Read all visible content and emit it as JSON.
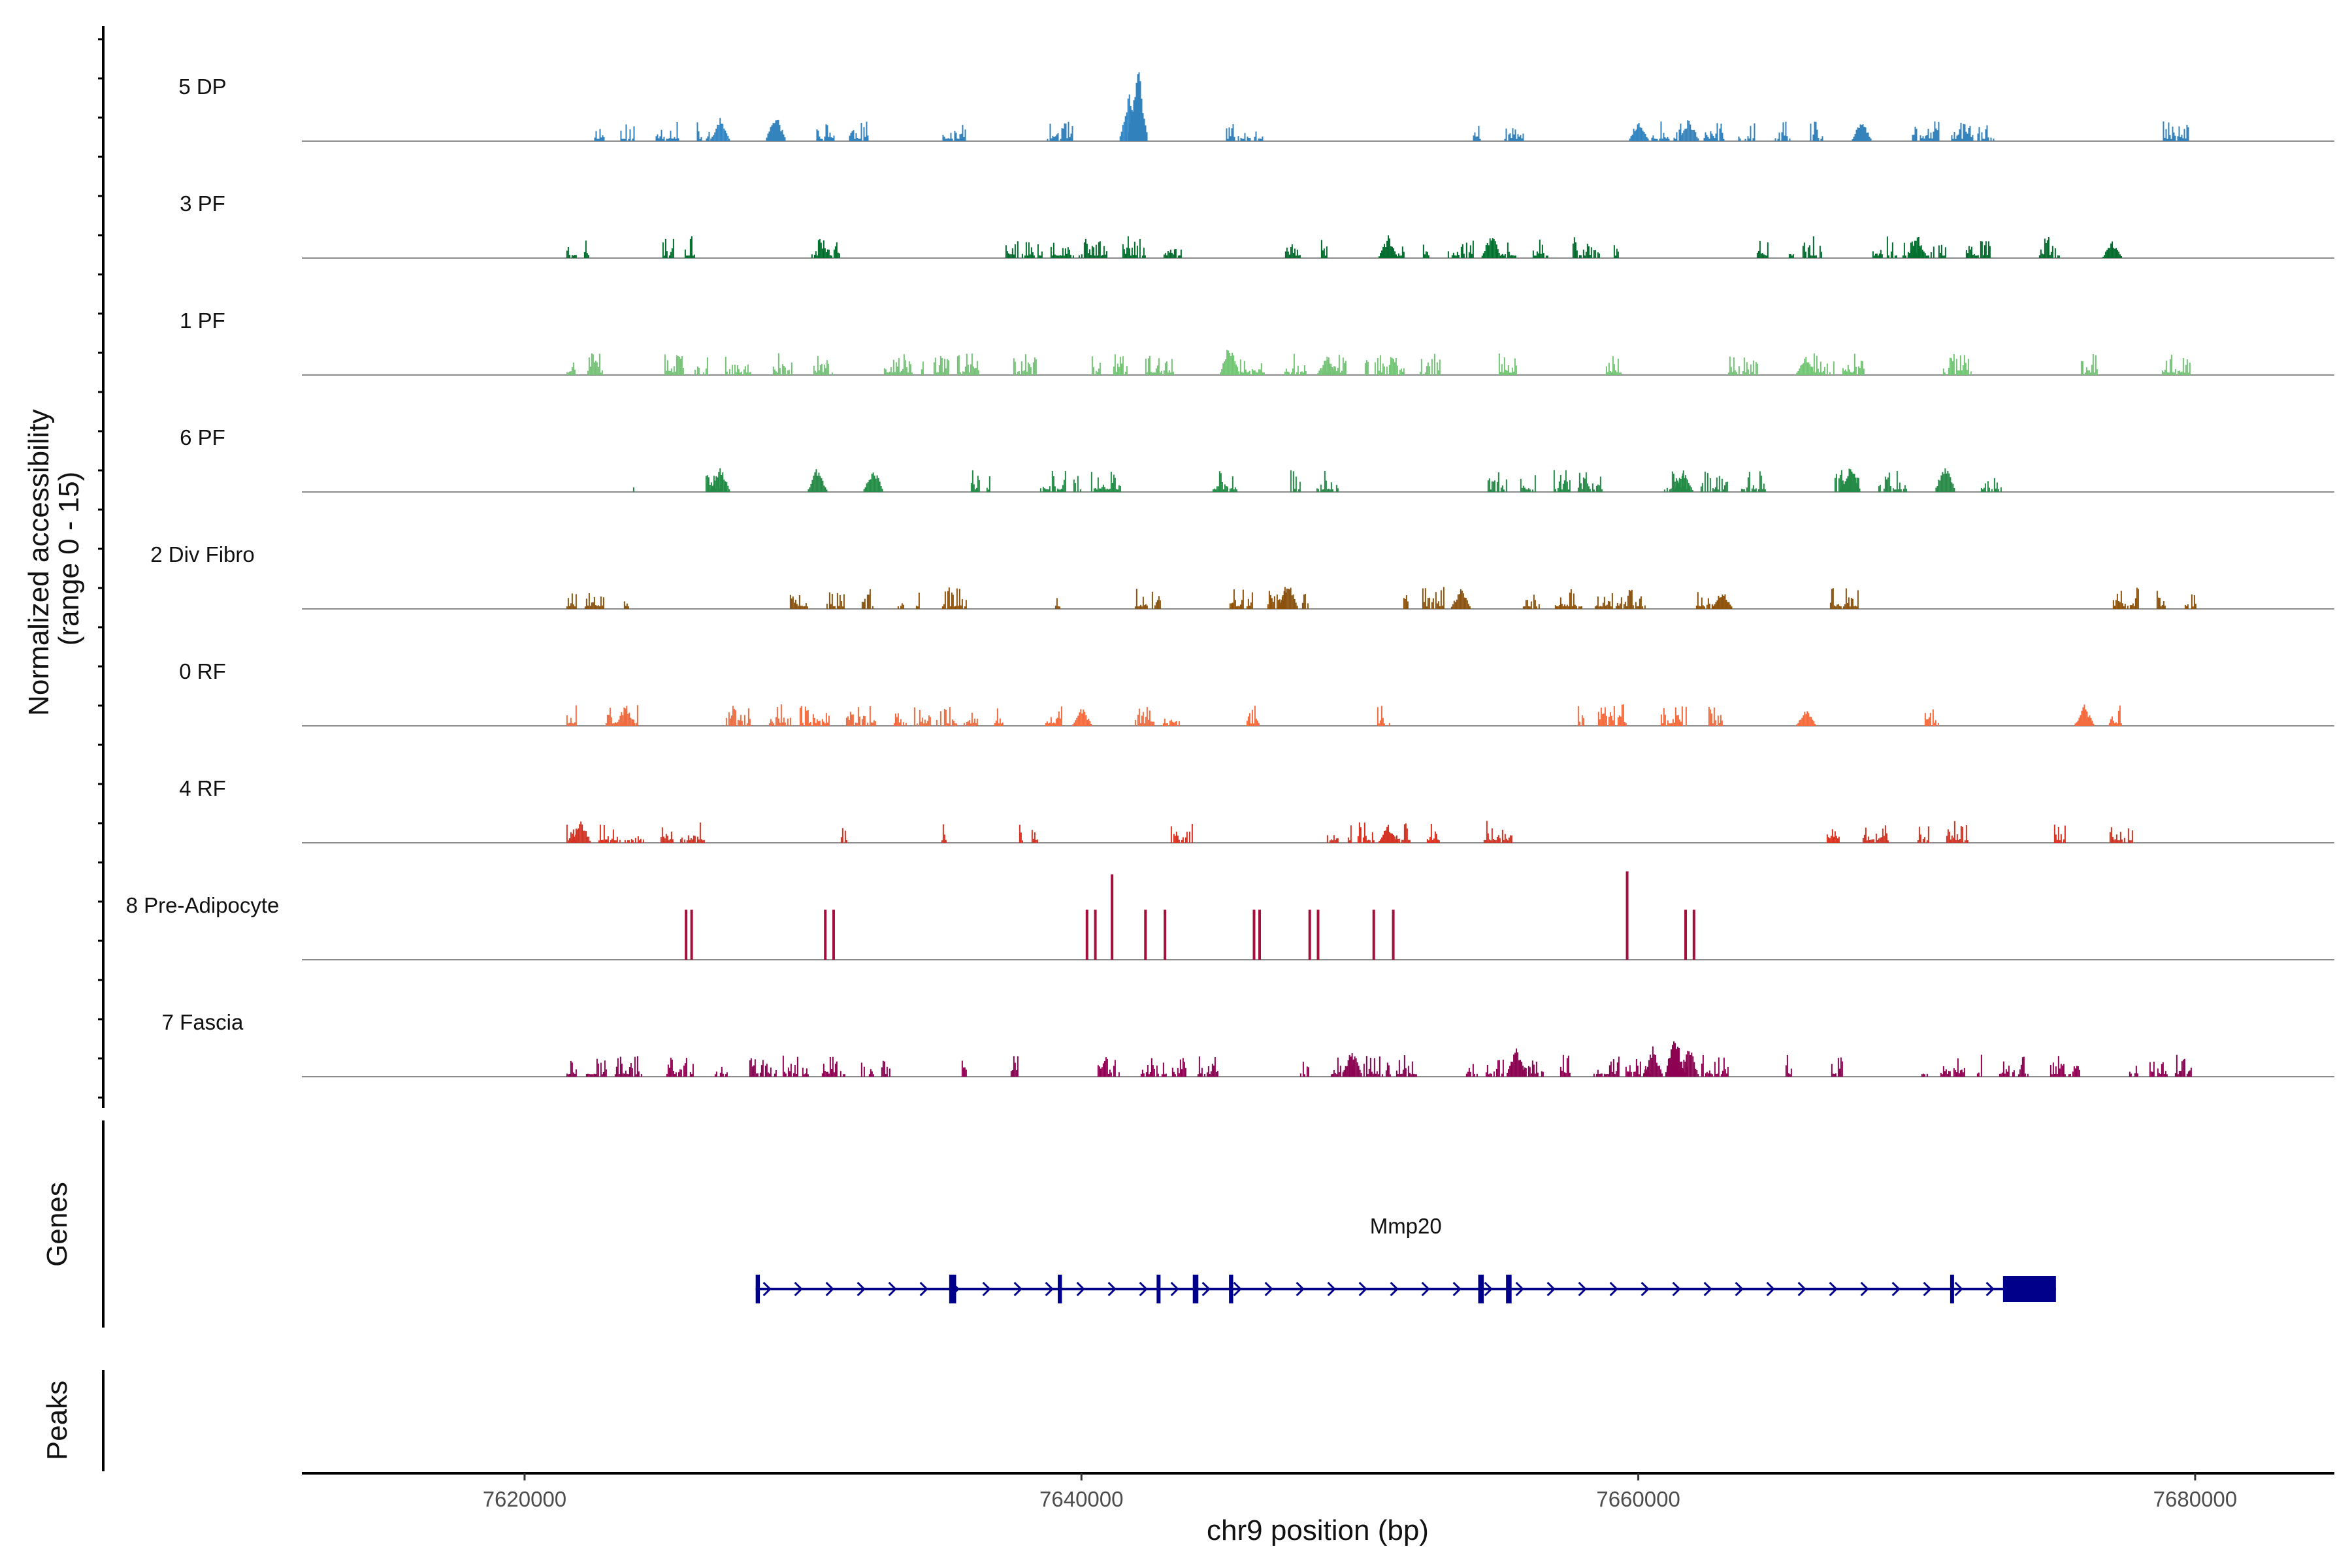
{
  "chart_data": {
    "type": "area",
    "title": "",
    "region": {
      "chrom": "chr9",
      "start": 7612000,
      "end": 7685000
    },
    "xlabel": "chr9 position (bp)",
    "ylabel_line1": "Normalized accessibility",
    "ylabel_line2": "(range 0 - 15)",
    "ylim": [
      0,
      15
    ],
    "x_ticks": [
      {
        "value": 7620000,
        "label": "7620000"
      },
      {
        "value": 7640000,
        "label": "7640000"
      },
      {
        "value": 7660000,
        "label": "7660000"
      },
      {
        "value": 7680000,
        "label": "7680000"
      }
    ],
    "tracks": [
      {
        "name": "5 DP",
        "color": "#3182bd",
        "density": 0.45,
        "scale": 0.9,
        "seed": 11,
        "span": [
          7622500,
          7680000
        ],
        "peaks": [
          {
            "pos": 7642000,
            "height": 13.8
          },
          {
            "pos": 7641700,
            "height": 8.5
          },
          {
            "pos": 7629000,
            "height": 5.2
          },
          {
            "pos": 7627000,
            "height": 4.0
          },
          {
            "pos": 7660000,
            "height": 4.2
          },
          {
            "pos": 7661800,
            "height": 4.0
          },
          {
            "pos": 7668000,
            "height": 3.8
          }
        ]
      },
      {
        "name": "3 PF",
        "color": "#006d2c",
        "density": 0.55,
        "scale": 1.0,
        "seed": 23,
        "span": [
          7621500,
          7678500
        ],
        "peaks": [
          {
            "pos": 7654700,
            "height": 4.6
          },
          {
            "pos": 7651000,
            "height": 3.8
          },
          {
            "pos": 7670000,
            "height": 3.5
          },
          {
            "pos": 7677000,
            "height": 3.0
          }
        ]
      },
      {
        "name": "1 PF",
        "color": "#74c476",
        "density": 0.7,
        "scale": 1.0,
        "seed": 37,
        "span": [
          7621500,
          7680000
        ],
        "peaks": [
          {
            "pos": 7645300,
            "height": 5.6
          },
          {
            "pos": 7648800,
            "height": 3.8
          },
          {
            "pos": 7666000,
            "height": 3.8
          }
        ]
      },
      {
        "name": "6 PF",
        "color": "#238b45",
        "density": 0.45,
        "scale": 1.0,
        "seed": 41,
        "span": [
          7621500,
          7680000
        ],
        "peaks": [
          {
            "pos": 7627000,
            "height": 4.6
          },
          {
            "pos": 7630500,
            "height": 4.4
          },
          {
            "pos": 7632500,
            "height": 4.6
          },
          {
            "pos": 7667600,
            "height": 5.6
          },
          {
            "pos": 7671000,
            "height": 5.6
          },
          {
            "pos": 7661600,
            "height": 3.8
          }
        ]
      },
      {
        "name": "2 Div Fibro",
        "color": "#8c510a",
        "density": 0.65,
        "scale": 1.0,
        "seed": 53,
        "span": [
          7621500,
          7680000
        ],
        "peaks": [
          {
            "pos": 7647400,
            "height": 5.0
          },
          {
            "pos": 7653600,
            "height": 3.8
          },
          {
            "pos": 7663000,
            "height": 3.6
          }
        ]
      },
      {
        "name": "0 RF",
        "color": "#f16b3f",
        "density": 0.7,
        "scale": 1.0,
        "seed": 67,
        "span": [
          7621500,
          7680000
        ],
        "peaks": [
          {
            "pos": 7623600,
            "height": 3.8
          },
          {
            "pos": 7640000,
            "height": 3.2
          },
          {
            "pos": 7676000,
            "height": 3.5
          },
          {
            "pos": 7666000,
            "height": 3.0
          }
        ]
      },
      {
        "name": "4 RF",
        "color": "#d7301f",
        "density": 0.55,
        "scale": 1.0,
        "seed": 79,
        "span": [
          7621500,
          7680000
        ],
        "peaks": [
          {
            "pos": 7622000,
            "height": 4.2
          },
          {
            "pos": 7651000,
            "height": 3.2
          }
        ]
      },
      {
        "name": "8 Pre-Adipocyte",
        "color": "#a50f3c",
        "density": 0.0,
        "scale": 1.0,
        "seed": 83,
        "span": [
          7621500,
          7680000
        ],
        "peaks": [
          {
            "pos": 7625800,
            "height": 8.2,
            "width": 60
          },
          {
            "pos": 7626000,
            "height": 8.2,
            "width": 60
          },
          {
            "pos": 7630800,
            "height": 8.2,
            "width": 60
          },
          {
            "pos": 7631100,
            "height": 8.2,
            "width": 60
          },
          {
            "pos": 7640200,
            "height": 8.2,
            "width": 60
          },
          {
            "pos": 7640500,
            "height": 8.2,
            "width": 60
          },
          {
            "pos": 7641100,
            "height": 14.0,
            "width": 60
          },
          {
            "pos": 7642300,
            "height": 8.2,
            "width": 60
          },
          {
            "pos": 7643000,
            "height": 8.2,
            "width": 60
          },
          {
            "pos": 7646200,
            "height": 8.2,
            "width": 60
          },
          {
            "pos": 7646400,
            "height": 8.2,
            "width": 60
          },
          {
            "pos": 7648200,
            "height": 8.2,
            "width": 60
          },
          {
            "pos": 7648500,
            "height": 8.2,
            "width": 60
          },
          {
            "pos": 7650500,
            "height": 8.2,
            "width": 60
          },
          {
            "pos": 7651200,
            "height": 8.2,
            "width": 60
          },
          {
            "pos": 7659600,
            "height": 14.5,
            "width": 60
          },
          {
            "pos": 7661700,
            "height": 8.2,
            "width": 60
          },
          {
            "pos": 7662000,
            "height": 8.2,
            "width": 60
          }
        ]
      },
      {
        "name": "7 Fascia",
        "color": "#8e0152",
        "density": 0.7,
        "scale": 1.0,
        "seed": 97,
        "span": [
          7621500,
          7680000
        ],
        "peaks": [
          {
            "pos": 7661300,
            "height": 8.0
          },
          {
            "pos": 7661800,
            "height": 5.6
          },
          {
            "pos": 7660500,
            "height": 5.0
          },
          {
            "pos": 7649700,
            "height": 5.0
          },
          {
            "pos": 7655600,
            "height": 5.4
          }
        ]
      }
    ],
    "genes_label": "Genes",
    "peaks_label": "Peaks",
    "gene": {
      "name": "Mmp20",
      "start": 7628300,
      "end": 7675000,
      "color": "#00008b",
      "strand": "+",
      "exons": [
        {
          "start": 7628300,
          "end": 7628450
        },
        {
          "start": 7635250,
          "end": 7635500
        },
        {
          "start": 7639150,
          "end": 7639300
        },
        {
          "start": 7642700,
          "end": 7642800
        },
        {
          "start": 7644000,
          "end": 7644200
        },
        {
          "start": 7645300,
          "end": 7645450
        },
        {
          "start": 7654250,
          "end": 7654450
        },
        {
          "start": 7655250,
          "end": 7655450
        },
        {
          "start": 7671200,
          "end": 7671300
        },
        {
          "start": 7673100,
          "end": 7675000
        }
      ]
    }
  }
}
